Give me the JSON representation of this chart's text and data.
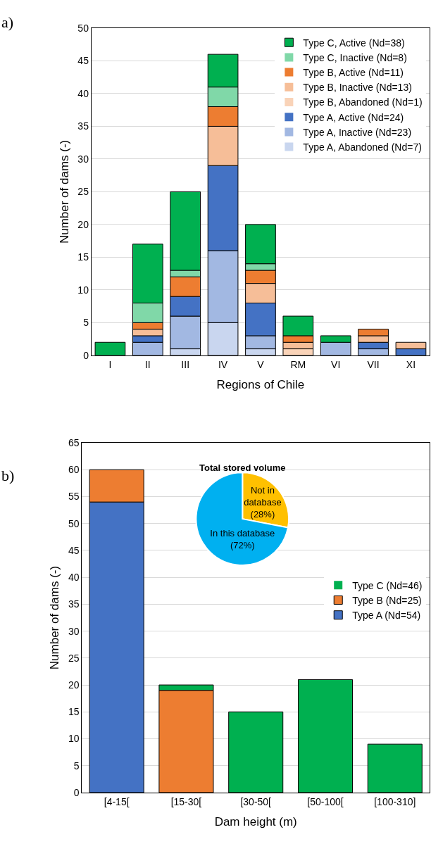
{
  "chart_data": [
    {
      "type": "bar",
      "xlabel": "Regions of Chile",
      "ylabel": "Number of dams (-)",
      "annotations": [
        "a)"
      ],
      "categories": [
        "I",
        "II",
        "III",
        "IV",
        "V",
        "RM",
        "VI",
        "VII",
        "XI"
      ],
      "stacked": true,
      "ylim": [
        0,
        50
      ],
      "yticks": [
        0,
        5,
        10,
        15,
        20,
        25,
        30,
        35,
        40,
        45,
        50
      ],
      "grid": "y",
      "legend": "top right",
      "series": [
        {
          "name": "Type A, Abandoned (Nd=7)",
          "color": "#c9d6ef",
          "values": [
            0,
            0,
            1,
            5,
            1,
            0,
            0,
            0,
            0
          ]
        },
        {
          "name": "Type A, Inactive (Nd=23)",
          "color": "#a2b8e2",
          "values": [
            0,
            2,
            5,
            11,
            2,
            0,
            2,
            1,
            0
          ]
        },
        {
          "name": "Type A, Active (Nd=24)",
          "color": "#4472c4",
          "values": [
            0,
            1,
            3,
            13,
            5,
            0,
            0,
            1,
            1
          ]
        },
        {
          "name": "Type B, Abandoned (Nd=1)",
          "color": "#f9d3b8",
          "values": [
            0,
            0,
            0,
            0,
            0,
            1,
            0,
            0,
            0
          ]
        },
        {
          "name": "Type B, Inactive (Nd=13)",
          "color": "#f6be98",
          "values": [
            0,
            1,
            0,
            6,
            3,
            1,
            0,
            1,
            1
          ]
        },
        {
          "name": "Type B, Active (Nd=11)",
          "color": "#ed7d31",
          "values": [
            0,
            1,
            3,
            3,
            2,
            1,
            0,
            1,
            0
          ]
        },
        {
          "name": "Type C, Inactive (Nd=8)",
          "color": "#80d8a8",
          "values": [
            0,
            3,
            1,
            3,
            1,
            0,
            0,
            0,
            0
          ]
        },
        {
          "name": "Type C, Active (Nd=38)",
          "color": "#00b050",
          "values": [
            2,
            9,
            12,
            5,
            6,
            3,
            1,
            0,
            0
          ]
        }
      ]
    },
    {
      "type": "bar",
      "xlabel": "Dam height (m)",
      "ylabel": "Number of dams (-)",
      "annotations": [
        "b)"
      ],
      "categories": [
        "[4-15[",
        "[15-30[",
        "[30-50[",
        "[50-100[",
        "[100-310]"
      ],
      "stacked": true,
      "ylim": [
        0,
        65
      ],
      "yticks": [
        0,
        5,
        10,
        15,
        20,
        25,
        30,
        35,
        40,
        45,
        50,
        55,
        60,
        65
      ],
      "grid": "y",
      "legend": "right",
      "series": [
        {
          "name": "Type A (Nd=54)",
          "color": "#4472c4",
          "values": [
            54,
            0,
            0,
            0,
            0
          ]
        },
        {
          "name": "Type B (Nd=25)",
          "color": "#ed7d31",
          "values": [
            6,
            19,
            0,
            0,
            0
          ]
        },
        {
          "name": "Type C (Nd=46)",
          "color": "#00b050",
          "values": [
            0,
            1,
            15,
            21,
            9
          ]
        }
      ]
    },
    {
      "type": "pie",
      "title": "Total stored volume",
      "categories": [
        "Not in database",
        "In this database"
      ],
      "values": [
        28,
        72
      ],
      "colors": [
        "#ffc000",
        "#00b0f0"
      ],
      "value_labels": [
        "(28%)",
        "(72%)"
      ]
    }
  ]
}
